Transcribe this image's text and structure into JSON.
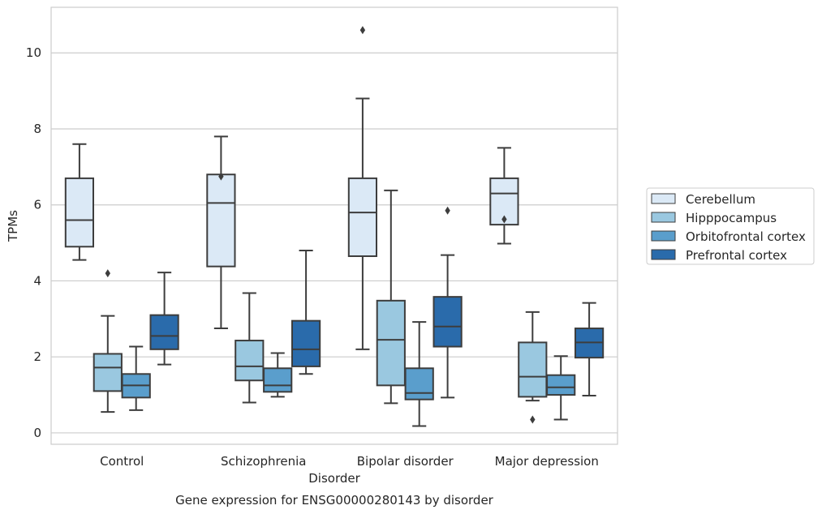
{
  "chart_data": {
    "type": "box",
    "title": "Gene expression for ENSG00000280143 by disorder",
    "xlabel": "Disorder",
    "ylabel": "TPMs",
    "ylim": [
      -0.3,
      11.2
    ],
    "yticks": [
      "0",
      "2",
      "4",
      "6",
      "8",
      "10"
    ],
    "categories": [
      "Control",
      "Schizophrenia",
      "Bipolar disorder",
      "Major depression"
    ],
    "grid": true,
    "legend_position": "right",
    "series": [
      {
        "name": "Cerebellum",
        "color": "#dbe9f6",
        "boxes": [
          {
            "whisker_low": 4.55,
            "q1": 4.9,
            "median": 5.6,
            "q3": 6.7,
            "whisker_high": 7.6,
            "outliers": []
          },
          {
            "whisker_low": 2.75,
            "q1": 4.38,
            "median": 6.05,
            "q3": 6.8,
            "whisker_high": 7.8,
            "outliers": [
              6.75
            ]
          },
          {
            "whisker_low": 2.2,
            "q1": 4.65,
            "median": 5.8,
            "q3": 6.7,
            "whisker_high": 8.8,
            "outliers": [
              10.6
            ]
          },
          {
            "whisker_low": 4.98,
            "q1": 5.48,
            "median": 6.3,
            "q3": 6.7,
            "whisker_high": 7.5,
            "outliers": [
              5.62
            ]
          }
        ]
      },
      {
        "name": "Hipppocampus",
        "color": "#9ac8e0",
        "boxes": [
          {
            "whisker_low": 0.55,
            "q1": 1.1,
            "median": 1.72,
            "q3": 2.08,
            "whisker_high": 3.08,
            "outliers": [
              4.2
            ]
          },
          {
            "whisker_low": 0.8,
            "q1": 1.38,
            "median": 1.75,
            "q3": 2.43,
            "whisker_high": 3.68,
            "outliers": []
          },
          {
            "whisker_low": 0.78,
            "q1": 1.25,
            "median": 2.45,
            "q3": 3.48,
            "whisker_high": 6.38,
            "outliers": []
          },
          {
            "whisker_low": 0.85,
            "q1": 0.95,
            "median": 1.48,
            "q3": 2.38,
            "whisker_high": 3.18,
            "outliers": [
              0.35
            ]
          }
        ]
      },
      {
        "name": "Orbitofrontal cortex",
        "color": "#5a9ecc",
        "boxes": [
          {
            "whisker_low": 0.6,
            "q1": 0.93,
            "median": 1.25,
            "q3": 1.55,
            "whisker_high": 2.27,
            "outliers": []
          },
          {
            "whisker_low": 0.95,
            "q1": 1.08,
            "median": 1.25,
            "q3": 1.7,
            "whisker_high": 2.1,
            "outliers": []
          },
          {
            "whisker_low": 0.18,
            "q1": 0.88,
            "median": 1.05,
            "q3": 1.7,
            "whisker_high": 2.92,
            "outliers": []
          },
          {
            "whisker_low": 0.35,
            "q1": 1.0,
            "median": 1.2,
            "q3": 1.52,
            "whisker_high": 2.02,
            "outliers": []
          }
        ]
      },
      {
        "name": "Prefrontal cortex",
        "color": "#2a6bab",
        "boxes": [
          {
            "whisker_low": 1.8,
            "q1": 2.2,
            "median": 2.55,
            "q3": 3.1,
            "whisker_high": 4.22,
            "outliers": []
          },
          {
            "whisker_low": 1.55,
            "q1": 1.75,
            "median": 2.2,
            "q3": 2.95,
            "whisker_high": 4.8,
            "outliers": []
          },
          {
            "whisker_low": 0.93,
            "q1": 2.27,
            "median": 2.8,
            "q3": 3.58,
            "whisker_high": 4.68,
            "outliers": [
              5.85
            ]
          },
          {
            "whisker_low": 0.98,
            "q1": 1.98,
            "median": 2.38,
            "q3": 2.75,
            "whisker_high": 3.42,
            "outliers": []
          }
        ]
      }
    ]
  }
}
